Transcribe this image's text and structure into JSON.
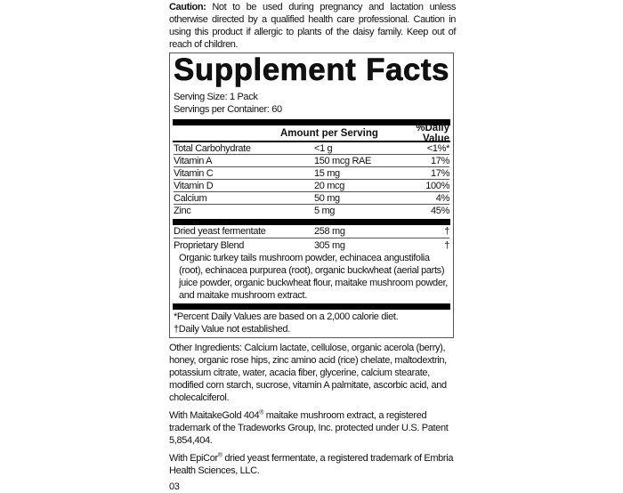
{
  "caution": {
    "label": "Caution:",
    "text": " Not to be used during pregnancy and lactation unless otherwise directed by a qualified health care professional. Caution in using this product if allergic to plants of the daisy family. Keep out of reach of children."
  },
  "facts": {
    "title_left": "Supplement",
    "title_right": "Facts",
    "serving_size": "Serving Size: 1 Pack",
    "servings_per_container": "Servings per Container: 60",
    "col_amount": "Amount per Serving",
    "col_dv": "%Daily Value",
    "nutrients": [
      {
        "name": "Total Carbohydrate",
        "amount": "<1 g",
        "dv": "<1%*"
      },
      {
        "name": "Vitamin A",
        "amount": "150 mcg RAE",
        "dv": "17%"
      },
      {
        "name": "Vitamin C",
        "amount": "15 mg",
        "dv": "17%"
      },
      {
        "name": "Vitamin D",
        "amount": "20 mcg",
        "dv": "100%"
      },
      {
        "name": "Calcium",
        "amount": "50 mg",
        "dv": "4%"
      },
      {
        "name": "Zinc",
        "amount": "5 mg",
        "dv": "45%"
      }
    ],
    "others": [
      {
        "name": "Dried yeast fermentate",
        "amount": "258 mg",
        "dv": "†"
      },
      {
        "name": "Proprietary Blend",
        "amount": "305 mg",
        "dv": "†"
      }
    ],
    "blend_description": "Organic turkey tails mushroom powder, echinacea angustifolia (root), echinacea purpurea (root), organic buckwheat (aerial parts) juice powder, organic buckwheat flour, maitake mushroom powder, and maitake mushroom extract.",
    "footnote1": "*Percent Daily Values are based on a 2,000 calorie diet.",
    "footnote2": "†Daily Value not established."
  },
  "other_ingredients": "Other Ingredients: Calcium lactate, cellulose, organic acerola (berry), honey, organic rose hips, zinc amino acid (rice) chelate, maltodextrin, potassium citrate, water, acacia fiber, glycerine, calcium stearate, modified corn starch, sucrose, vitamin A palmitate, ascorbic acid, and cholecalciferol.",
  "maitake": {
    "pre": "With MaitakeGold 404",
    "reg": "®",
    "post": " maitake mushroom extract, a registered trademark of the Tradeworks Group, Inc. protected under U.S. Patent 5,854,404."
  },
  "epicor": {
    "pre": "With EpiCor",
    "reg": "®",
    "post": " dried yeast fermentate, a registered trademark of Embria Health Sciences, LLC."
  },
  "code": "03"
}
